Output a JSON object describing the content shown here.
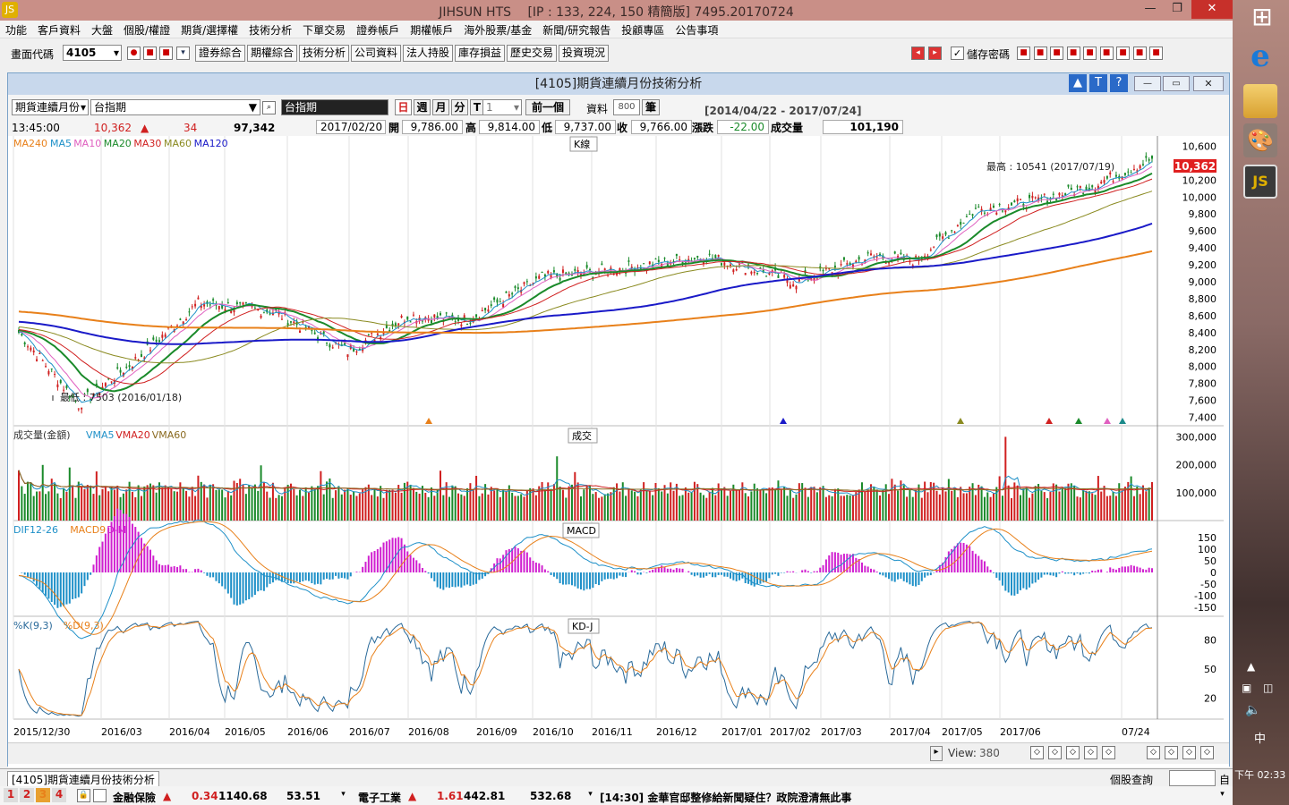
{
  "window": {
    "title": "JIHSUN HTS　 [IP : 133, 224, 150 精簡版] 7495.20170724",
    "min": "—",
    "max": "❐",
    "close": "✕"
  },
  "menu": [
    "功能",
    "客戶資料",
    "大盤",
    "個股/權證",
    "期貨/選擇權",
    "技術分析",
    "下單交易",
    "證券帳戶",
    "期權帳戶",
    "海外股票/基金",
    "新聞/研究報告",
    "投顧專區",
    "公告事項"
  ],
  "toolbar": {
    "code_label": "畫面代碼",
    "code_value": "4105",
    "buttons": [
      "證券綜合",
      "期權綜合",
      "技術分析",
      "公司資料",
      "法人持股",
      "庫存損益",
      "歷史交易",
      "投資現況"
    ],
    "save_pw": "儲存密碼"
  },
  "child": {
    "title": "[4105]期貨連續月份技術分析",
    "controls": {
      "mode": "期貨連續月份",
      "symbol": "台指期",
      "symbol_box": "台指期",
      "periods": [
        "日",
        "週",
        "月",
        "分"
      ],
      "t": "T",
      "num": "1",
      "prev": "前一個",
      "data_label": "資料",
      "data_count": "800",
      "unit": "筆",
      "range": "[2014/04/22 - 2017/07/24]"
    },
    "quote": {
      "time": "13:45:00",
      "price": "10,362",
      "arrow": "▲",
      "change": "34",
      "volume": "97,342",
      "date": "2017/02/20",
      "open_label": "開",
      "open": "9,786.00",
      "high_label": "高",
      "high": "9,814.00",
      "low_label": "低",
      "low": "9,737.00",
      "close_label": "收",
      "close": "9,766.00",
      "chg_label": "漲跌",
      "chg": "-22.00",
      "vol_label": "成交量",
      "vol": "101,190"
    }
  },
  "panels": {
    "k": {
      "title": "K線",
      "legend": [
        {
          "name": "MA240",
          "color": "#e8801a"
        },
        {
          "name": "MA5",
          "color": "#1e90c8"
        },
        {
          "name": "MA10",
          "color": "#e060c0"
        },
        {
          "name": "MA20",
          "color": "#1a8a2a"
        },
        {
          "name": "MA30",
          "color": "#d02020"
        },
        {
          "name": "MA60",
          "color": "#8a8a20"
        },
        {
          "name": "MA120",
          "color": "#1a1ac8"
        }
      ],
      "high_note": "最高 : 10541 (2017/07/19)",
      "low_note": "最低 : 7503 (2016/01/18)",
      "current": "10,362",
      "ticks": [
        "10,600",
        "10,400",
        "10,200",
        "10,000",
        "9,800",
        "9,600",
        "9,400",
        "9,200",
        "9,000",
        "8,800",
        "8,600",
        "8,400",
        "8,200",
        "8,000",
        "7,800",
        "7,600",
        "7,400"
      ]
    },
    "vol": {
      "title": "成交",
      "legend": [
        {
          "name": "成交量(金額)",
          "color": "#333"
        },
        {
          "name": "VMA5",
          "color": "#1e90c8"
        },
        {
          "name": "VMA20",
          "color": "#d02020"
        },
        {
          "name": "VMA60",
          "color": "#8a6a20"
        }
      ],
      "ticks": [
        "300,000",
        "200,000",
        "100,000"
      ]
    },
    "macd": {
      "title": "MACD",
      "legend": [
        {
          "name": "DIF12-26",
          "color": "#1e90c8"
        },
        {
          "name": "MACD9",
          "color": "#e8801a"
        },
        {
          "name": "D-M",
          "color": "#d020d0"
        }
      ],
      "ticks": [
        "150",
        "100",
        "50",
        "0",
        "-50",
        "-100",
        "-150"
      ]
    },
    "kd": {
      "title": "KD-J",
      "legend": [
        {
          "name": "%K(9,3)",
          "color": "#2a6a9a"
        },
        {
          "name": "%D(9,3)",
          "color": "#e8801a"
        }
      ],
      "ticks": [
        "80",
        "50",
        "20"
      ]
    }
  },
  "xaxis": [
    "2015/12/30",
    "2016/03",
    "2016/04",
    "2016/05",
    "2016/06",
    "2016/07",
    "2016/08",
    "2016/09",
    "2016/10",
    "2016/11",
    "2016/12",
    "2017/01",
    "2017/02",
    "2017/03",
    "2017/04",
    "2017/05",
    "2017/06",
    "07/24"
  ],
  "view": {
    "label": "View:",
    "value": "380"
  },
  "status": {
    "tab": "[4105]期貨連續月份技術分析",
    "query": "個股查詢",
    "end": "自"
  },
  "ticker": {
    "nums": [
      "1",
      "2",
      "3",
      "4"
    ],
    "a_name": "金融保險",
    "a_arrow": "▲",
    "a_chg": "0.34",
    "a_idx": "1140.68",
    "a_vol": "53.51",
    "b_name": "電子工業",
    "b_arrow": "▲",
    "b_chg": "1.61",
    "b_idx": "442.81",
    "b_vol": "532.68",
    "news": "[14:30] 金華官邸整修給新聞疑住？政院澄清無此事"
  },
  "taskbar": {
    "time": "下午 02:33",
    "ime": "中"
  }
}
